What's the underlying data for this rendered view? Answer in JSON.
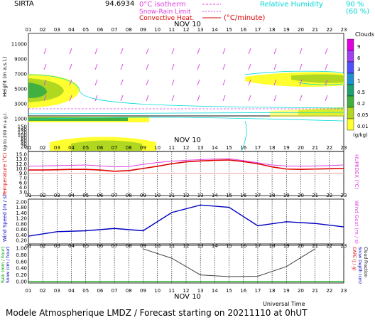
{
  "header": {
    "station": "SIRTA",
    "coords": "94.6934",
    "legend": {
      "isotherm": "0°C isotherm",
      "snow_rain": "Snow-Rain Limit",
      "convective": "Convective Heat.",
      "convective_unit": "(°C/minute)",
      "rh_label": "Relative Humidity",
      "rh_90": "90 %",
      "rh_60": "(60 %)"
    }
  },
  "hours": [
    "01",
    "02",
    "03",
    "04",
    "05",
    "06",
    "07",
    "08",
    "09",
    "10",
    "11",
    "12",
    "13",
    "14",
    "15",
    "16",
    "17",
    "18",
    "19",
    "20",
    "21",
    "22",
    "23"
  ],
  "date_label": "NOV 10",
  "footer": {
    "xaxis": "Universal Time",
    "title": "Modele Atmospherique LMDZ / Forecast starting on 20211110 at 0hUT"
  },
  "clouds_colorbar": {
    "title": "Clouds",
    "unit": "(g/kg)",
    "levels": [
      "9",
      "6",
      "3",
      "1",
      "0.5",
      "0.2",
      "0.05",
      "0.01"
    ],
    "colors": [
      "#e000e0",
      "#a040f0",
      "#5050ff",
      "#2090d0",
      "#20a070",
      "#40b040",
      "#b0d820",
      "#ffff30"
    ]
  },
  "panel_clouds": {
    "ylabel": "Height (m a.s.l.)",
    "ylabel2": "Up to 200 m a.g.l.",
    "yticks_upper": [
      "11000",
      "9000",
      "7000",
      "5000",
      "3000",
      "1000"
    ],
    "yticks_lower": [
      "150",
      "140",
      "120",
      "100",
      "80",
      "60",
      "40",
      "20"
    ]
  },
  "chart_data": [
    {
      "type": "line",
      "name": "temperature",
      "ylabel": "Temperature (°C)",
      "ylabel_right": "HUMIDEX (°C)",
      "x": [
        1,
        2,
        3,
        4,
        5,
        6,
        7,
        8,
        9,
        10,
        11,
        12,
        13,
        14,
        15,
        16,
        17,
        18,
        19,
        20,
        21,
        22,
        23
      ],
      "series": [
        {
          "values": [
            10.0,
            10.0,
            10.1,
            10.2,
            10.2,
            10.0,
            9.6,
            9.8,
            10.5,
            11.2,
            12.0,
            12.6,
            12.9,
            13.1,
            13.2,
            12.7,
            12.0,
            11.0,
            10.3,
            10.2,
            10.3,
            10.4,
            10.5
          ]
        },
        {
          "values": [
            11.2,
            11.3,
            11.4,
            11.5,
            11.6,
            11.3,
            11.0,
            11.1,
            11.8,
            12.4,
            12.8,
            13.1,
            13.3,
            13.5,
            13.6,
            13.0,
            12.3,
            11.6,
            11.3,
            11.2,
            11.3,
            11.4,
            11.6
          ]
        }
      ],
      "ylim": [
        3.0,
        15.0
      ],
      "yticks": [
        "15.0",
        "13.0",
        "12.0",
        "10.0",
        "9.0",
        "7.0",
        "6.0",
        "4.0",
        "3.0"
      ]
    },
    {
      "type": "line",
      "name": "wind",
      "ylabel": "Wind Speed (m / s)",
      "ylabel_right": "Wind Gust (m / s)",
      "x": [
        1,
        3,
        5,
        7,
        9,
        11,
        13,
        15,
        17,
        19,
        21,
        23
      ],
      "values": [
        0.22,
        0.45,
        0.5,
        0.62,
        0.5,
        1.45,
        1.84,
        1.72,
        0.76,
        0.97,
        0.88,
        0.7
      ],
      "ylim": [
        0.0,
        2.0
      ],
      "yticks": [
        "2.00",
        "1.80",
        "1.40",
        "1.20",
        "0.80",
        "0.60",
        "0.40",
        "0.20"
      ]
    },
    {
      "type": "line",
      "name": "rain",
      "ylabel": "Rain (mm / hour)",
      "ylabel2": "Snow (cm / hour)",
      "ylabel_right": "CAPE (J / g)",
      "ylabel_right2": "Snow Depth (cm)",
      "ylabel_right3": "Cloud Fraction",
      "x": [
        9,
        11,
        13,
        15,
        17,
        19,
        21
      ],
      "values": [
        0.98,
        0.7,
        0.2,
        0.15,
        0.16,
        0.45,
        0.98
      ],
      "ylim": [
        0.0,
        1.0
      ],
      "yticks": [
        "1.00",
        "0.80",
        "0.60",
        "0.40",
        "0.20",
        "0.00"
      ]
    }
  ]
}
